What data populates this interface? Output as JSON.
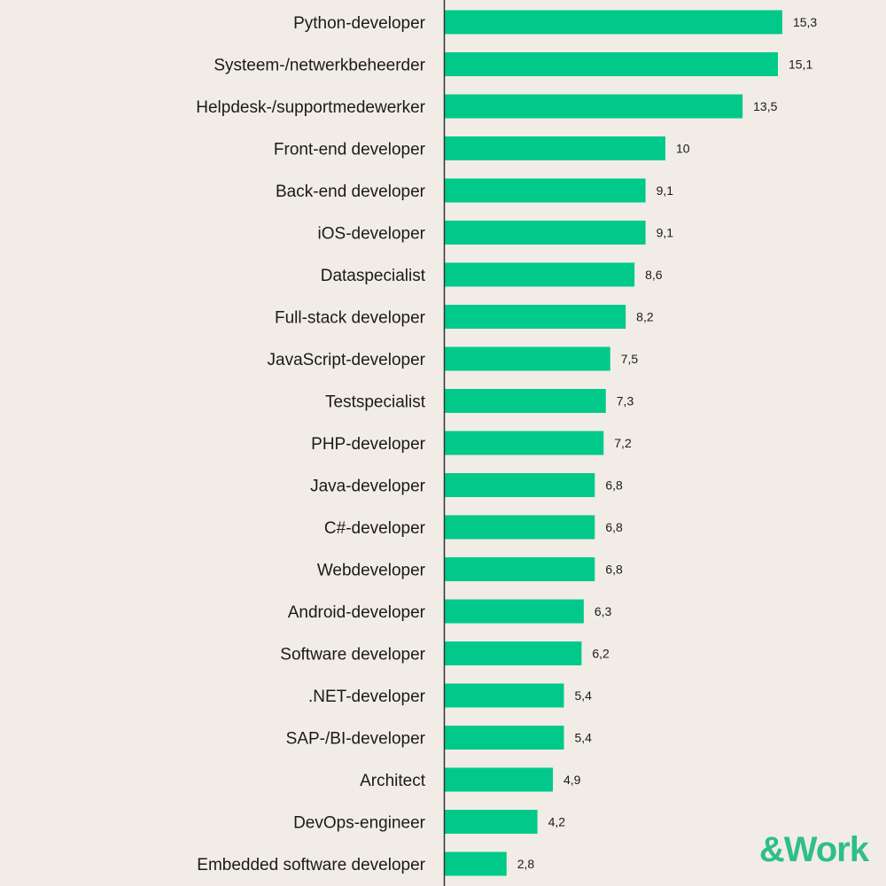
{
  "chart_data": {
    "type": "bar",
    "orientation": "horizontal",
    "categories": [
      "Python-developer",
      "Systeem-/netwerkbeheerder",
      "Helpdesk-/supportmedewerker",
      "Front-end developer",
      "Back-end developer",
      "iOS-developer",
      "Dataspecialist",
      "Full-stack developer",
      "JavaScript-developer",
      "Testspecialist",
      "PHP-developer",
      "Java-developer",
      "C#-developer",
      "Webdeveloper",
      "Android-developer",
      "Software developer",
      ".NET-developer",
      "SAP-/BI-developer",
      "Architect",
      "DevOps-engineer",
      "Embedded software developer"
    ],
    "values": [
      15.3,
      15.1,
      13.5,
      10,
      9.1,
      9.1,
      8.6,
      8.2,
      7.5,
      7.3,
      7.2,
      6.8,
      6.8,
      6.8,
      6.3,
      6.2,
      5.4,
      5.4,
      4.9,
      4.2,
      2.8
    ],
    "value_labels": [
      "15,3",
      "15,1",
      "13,5",
      "10",
      "9,1",
      "9,1",
      "8,6",
      "8,2",
      "7,5",
      "7,3",
      "7,2",
      "6,8",
      "6,8",
      "6,8",
      "6,3",
      "6,2",
      "5,4",
      "5,4",
      "4,9",
      "4,2",
      "2,8"
    ],
    "xlim": [
      0,
      20
    ],
    "grid": false,
    "bar_color": "#00c98a"
  },
  "logo": {
    "text": "&Work",
    "color": "#2fbf86"
  }
}
